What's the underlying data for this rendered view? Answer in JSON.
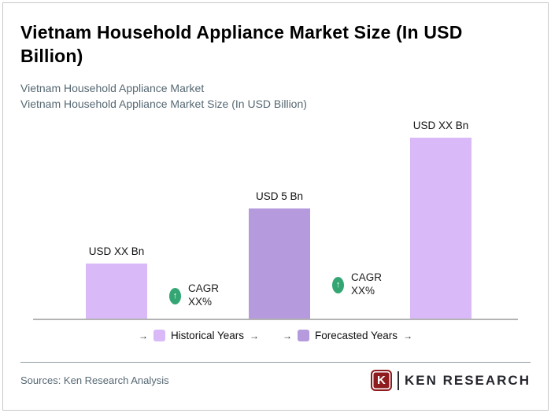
{
  "header": {
    "title": "Vietnam Household Appliance Market Size (In USD Billion)",
    "subtitle_line1": "Vietnam Household Appliance Market",
    "subtitle_line2": "Vietnam Household Appliance Market Size (In USD Billion)"
  },
  "chart_data": {
    "type": "bar",
    "title": "Vietnam Household Appliance Market Size (In USD Billion)",
    "categories": [
      "",
      "",
      ""
    ],
    "values": [
      2.5,
      5,
      8.2
    ],
    "value_labels": [
      "USD XX Bn",
      "USD 5 Bn",
      "USD XX Bn"
    ],
    "bar_colors": [
      "#d9b9f8",
      "#b69ade",
      "#d9b9f8"
    ],
    "ylim": [
      0,
      9
    ],
    "grid": false,
    "legend_position": "bottom",
    "annotations": [
      {
        "icon": "arrow-up-icon",
        "line1": "CAGR",
        "line2": "XX%"
      },
      {
        "icon": "arrow-up-icon",
        "line1": "CAGR",
        "line2": "XX%"
      }
    ],
    "legend": [
      {
        "label": "Historical Years",
        "color": "#d9b9f8"
      },
      {
        "label": "Forecasted Years",
        "color": "#b69ade"
      }
    ]
  },
  "legend": {
    "arrow_glyph": "→",
    "items": [
      {
        "label": "Historical Years",
        "color": "#d9b9f8"
      },
      {
        "label": "Forecasted Years",
        "color": "#b69ade"
      }
    ]
  },
  "icons": {
    "cagr_up": "↑"
  },
  "colors": {
    "historical_bar": "#d9b9f8",
    "forecasted_bar": "#b69ade",
    "cagr_badge": "#33a673",
    "subtitle_text": "#566873",
    "axis_line": "#b3b3b3",
    "logo_red": "#8e1c1f"
  },
  "footer": {
    "sources": "Sources: Ken Research Analysis",
    "logo": {
      "letter": "K",
      "text": "KEN RESEARCH"
    }
  }
}
